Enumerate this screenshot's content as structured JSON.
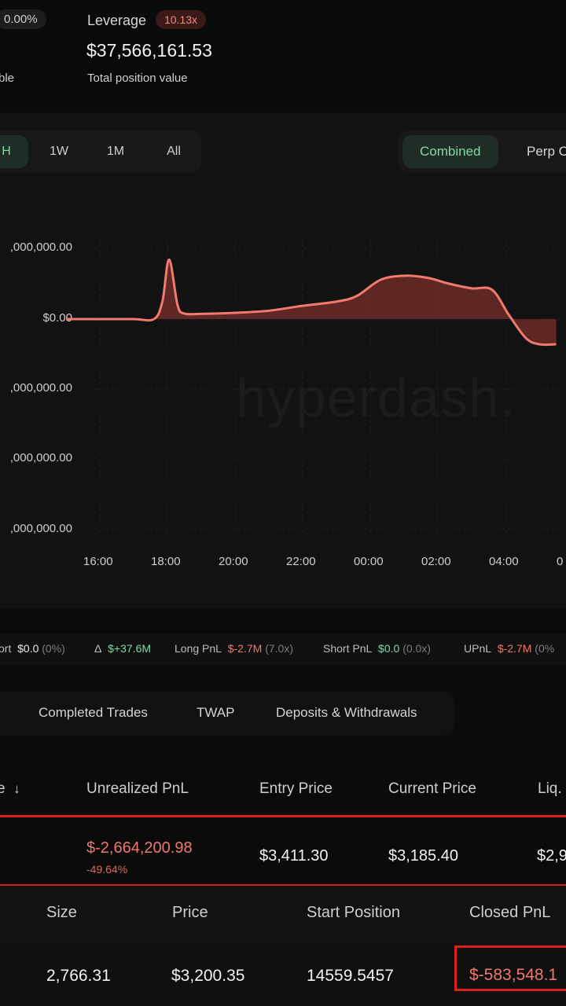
{
  "header": {
    "percent_value": "0.00%",
    "sub_label_partial": "ble",
    "leverage_label": "Leverage",
    "leverage_value": "10.13x",
    "position_value": "$37,566,161.53",
    "position_label": "Total position value"
  },
  "range_buttons": [
    {
      "label": "H",
      "active": true
    },
    {
      "label": "1W",
      "active": false
    },
    {
      "label": "1M",
      "active": false
    },
    {
      "label": "All",
      "active": false
    }
  ],
  "mode_buttons": [
    {
      "label": "Combined",
      "active": true
    },
    {
      "label": "Perp C",
      "active": false
    }
  ],
  "watermark": "hyperdash.",
  "chart_data": {
    "type": "area",
    "y_tick_labels": [
      ",000,000.00",
      "$0.00",
      ",000,000.00",
      ",000,000.00",
      ",000,000.00"
    ],
    "x_tick_labels": [
      "16:00",
      "18:00",
      "20:00",
      "22:00",
      "00:00",
      "02:00",
      "04:00",
      "0"
    ],
    "ylim": [
      -3000000,
      1000000
    ],
    "grid": true,
    "series": [
      {
        "color": "#f07a6e",
        "points": [
          [
            15.0,
            0
          ],
          [
            16.0,
            0
          ],
          [
            17.0,
            0
          ],
          [
            17.6,
            0
          ],
          [
            17.85,
            250000
          ],
          [
            18.05,
            850000
          ],
          [
            18.3,
            200000
          ],
          [
            18.5,
            80000
          ],
          [
            19.0,
            75000
          ],
          [
            20.0,
            90000
          ],
          [
            21.0,
            120000
          ],
          [
            22.0,
            190000
          ],
          [
            23.0,
            250000
          ],
          [
            23.6,
            330000
          ],
          [
            24.3,
            560000
          ],
          [
            25.0,
            620000
          ],
          [
            25.7,
            590000
          ],
          [
            26.3,
            510000
          ],
          [
            27.0,
            440000
          ],
          [
            27.6,
            420000
          ],
          [
            28.1,
            60000
          ],
          [
            28.6,
            -270000
          ],
          [
            29.0,
            -360000
          ],
          [
            29.5,
            -360000
          ]
        ]
      }
    ]
  },
  "stats": {
    "short_label": "ort",
    "short_value": "$0.0",
    "short_pct": "(0%)",
    "delta_label": "Δ",
    "delta_value": "$+37.6M",
    "long_pnl_label": "Long PnL",
    "long_pnl_value": "$-2.7M",
    "long_pnl_ratio": "(7.0x)",
    "short_pnl_label": "Short PnL",
    "short_pnl_value": "$0.0",
    "short_pnl_ratio": "(0.0x)",
    "upnl_label": "UPnL",
    "upnl_value": "$-2.7M",
    "upnl_pct": "(0%"
  },
  "tabs": [
    "Completed Trades",
    "TWAP",
    "Deposits & Withdrawals"
  ],
  "positions_table": {
    "headers": [
      "e",
      "Unrealized PnL",
      "Entry Price",
      "Current Price",
      "Liq."
    ],
    "row": {
      "unrealized_pnl": "$-2,664,200.98",
      "unrealized_pct": "-49.64%",
      "entry_price": "$3,411.30",
      "current_price": "$3,185.40",
      "liq_partial": "$2,9"
    }
  },
  "trades_table": {
    "headers": [
      "Size",
      "Price",
      "Start Position",
      "Closed PnL"
    ],
    "row": {
      "size": "2,766.31",
      "price": "$3,200.35",
      "start_position": "14559.5457",
      "closed_pnl": "$-583,548.1"
    }
  }
}
